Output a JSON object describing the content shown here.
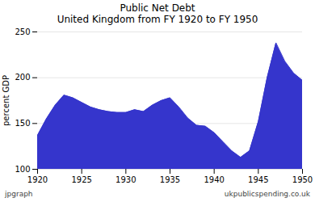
{
  "chart_data": {
    "type": "area",
    "title": "Public Net Debt\nUnited Kingdom from FY 1920 to FY 1950",
    "ylabel": "percent GDP",
    "annotations": [
      "jpgraph",
      "ukpublicspending.co.uk"
    ],
    "x": [
      1920,
      1921,
      1922,
      1923,
      1924,
      1925,
      1926,
      1927,
      1928,
      1929,
      1930,
      1931,
      1932,
      1933,
      1934,
      1935,
      1936,
      1937,
      1938,
      1939,
      1940,
      1941,
      1942,
      1943,
      1944,
      1945,
      1946,
      1947,
      1948,
      1949,
      1950
    ],
    "values": [
      137,
      155,
      170,
      181,
      178,
      173,
      168,
      165,
      163,
      162,
      162,
      165,
      163,
      170,
      175,
      178,
      168,
      156,
      148,
      147,
      140,
      130,
      120,
      113,
      120,
      152,
      200,
      238,
      218,
      205,
      197
    ],
    "color": "#3535cc",
    "xlim": [
      1920,
      1950
    ],
    "ylim": [
      100,
      250
    ],
    "xticks": [
      1920,
      1925,
      1930,
      1935,
      1940,
      1945,
      1950
    ],
    "yticks": [
      100,
      150,
      200,
      250
    ],
    "grid": true
  }
}
